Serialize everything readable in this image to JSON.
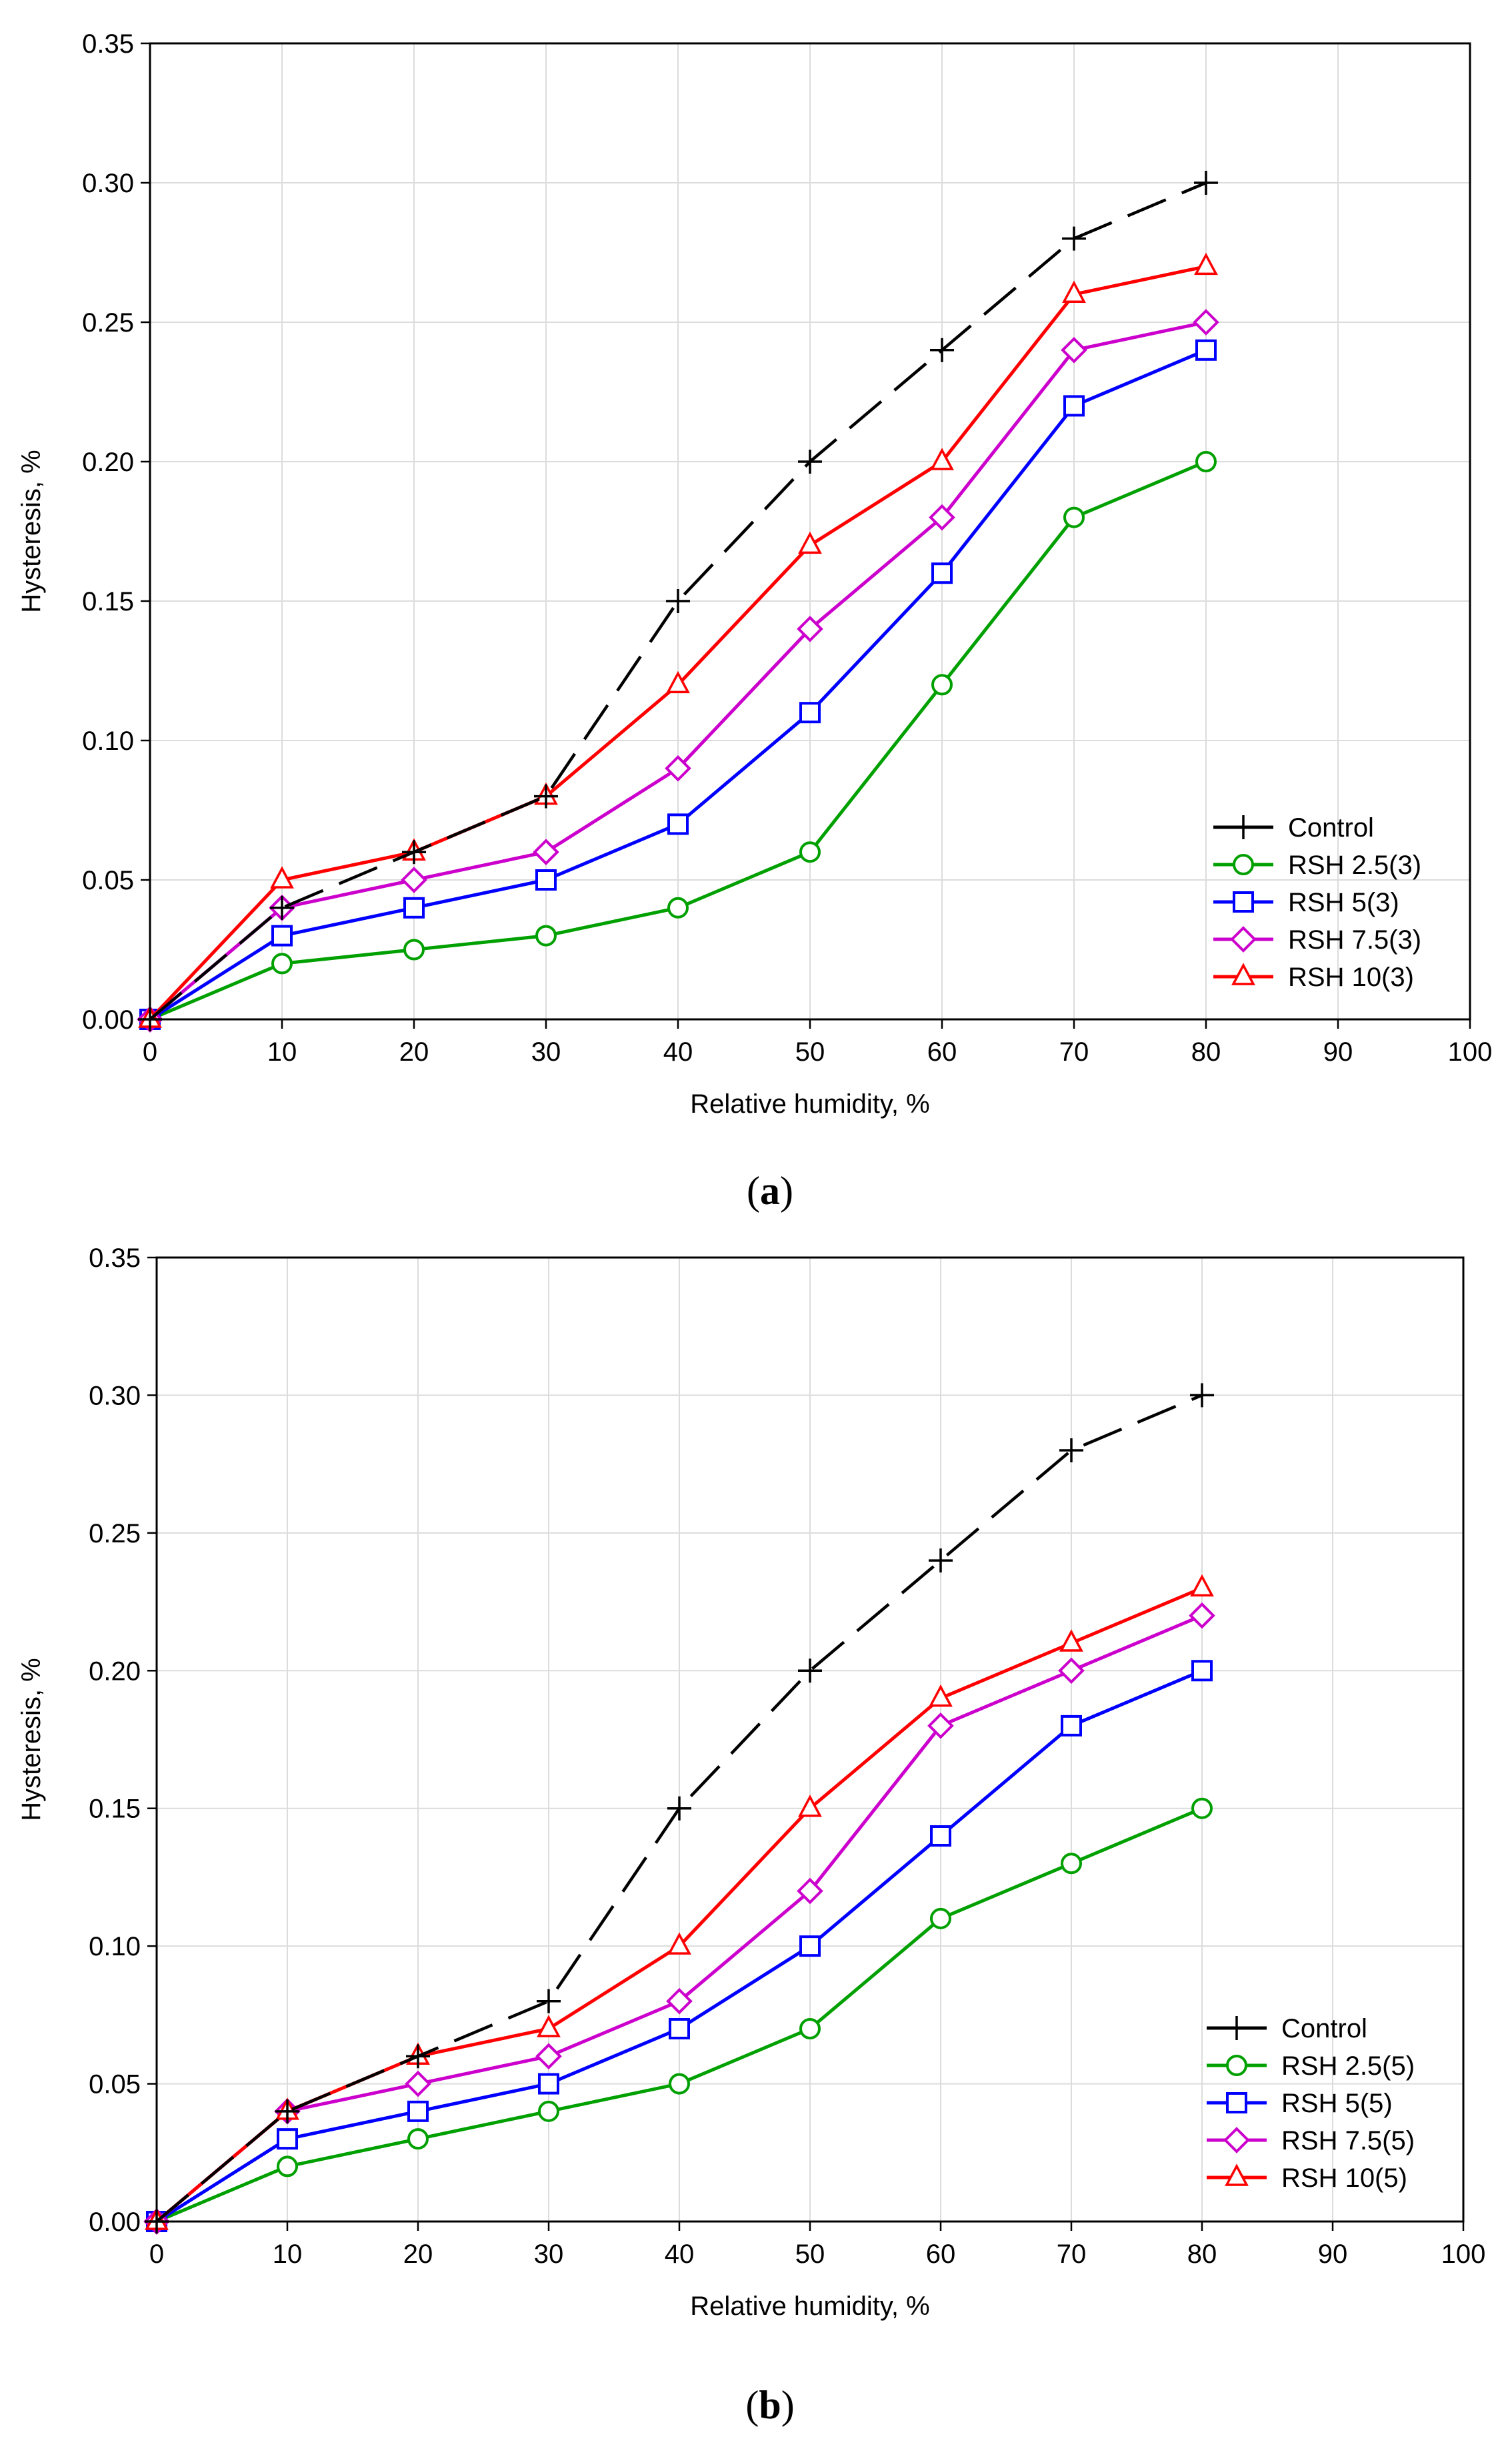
{
  "chart_data": [
    {
      "type": "line",
      "caption": "(a)",
      "caption_letter": "a",
      "xlabel": "Relative humidity, %",
      "ylabel": "Hysteresis, %",
      "xlim": [
        0,
        100
      ],
      "ylim": [
        0,
        0.35
      ],
      "xticks": [
        0,
        10,
        20,
        30,
        40,
        50,
        60,
        70,
        80,
        90,
        100
      ],
      "yticks": [
        "0.00",
        "0.05",
        "0.10",
        "0.15",
        "0.20",
        "0.25",
        "0.30",
        "0.35"
      ],
      "grid": true,
      "legend_position": "bottom-right",
      "x": [
        0,
        10,
        20,
        30,
        40,
        50,
        60,
        70,
        80
      ],
      "series": [
        {
          "name": "Control",
          "color": "#000000",
          "marker": "plus",
          "dashed": true,
          "values": [
            0,
            0.04,
            0.06,
            0.08,
            0.15,
            0.2,
            0.24,
            0.28,
            0.3
          ]
        },
        {
          "name": "RSH 2.5(3)",
          "color": "#00a000",
          "marker": "circle",
          "dashed": false,
          "values": [
            0,
            0.02,
            0.025,
            0.03,
            0.04,
            0.06,
            0.12,
            0.18,
            0.2
          ]
        },
        {
          "name": "RSH 5(3)",
          "color": "#0000ff",
          "marker": "square",
          "dashed": false,
          "values": [
            0,
            0.03,
            0.04,
            0.05,
            0.07,
            0.11,
            0.16,
            0.22,
            0.24
          ]
        },
        {
          "name": "RSH 7.5(3)",
          "color": "#cc00cc",
          "marker": "diamond",
          "dashed": false,
          "values": [
            0,
            0.04,
            0.05,
            0.06,
            0.09,
            0.14,
            0.18,
            0.24,
            0.25
          ]
        },
        {
          "name": "RSH 10(3)",
          "color": "#ff0000",
          "marker": "triangle",
          "dashed": false,
          "values": [
            0,
            0.05,
            0.06,
            0.08,
            0.12,
            0.17,
            0.2,
            0.26,
            0.27
          ]
        }
      ]
    },
    {
      "type": "line",
      "caption": "(b)",
      "caption_letter": "b",
      "xlabel": "Relative humidity, %",
      "ylabel": "Hysteresis, %",
      "xlim": [
        0,
        100
      ],
      "ylim": [
        0,
        0.35
      ],
      "xticks": [
        0,
        10,
        20,
        30,
        40,
        50,
        60,
        70,
        80,
        90,
        100
      ],
      "yticks": [
        "0.00",
        "0.05",
        "0.10",
        "0.15",
        "0.20",
        "0.25",
        "0.30",
        "0.35"
      ],
      "grid": true,
      "legend_position": "bottom-right",
      "x": [
        0,
        10,
        20,
        30,
        40,
        50,
        60,
        70,
        80
      ],
      "series": [
        {
          "name": "Control",
          "color": "#000000",
          "marker": "plus",
          "dashed": true,
          "values": [
            0,
            0.04,
            0.06,
            0.08,
            0.15,
            0.2,
            0.24,
            0.28,
            0.3
          ]
        },
        {
          "name": "RSH 2.5(5)",
          "color": "#00a000",
          "marker": "circle",
          "dashed": false,
          "values": [
            0,
            0.02,
            0.03,
            0.04,
            0.05,
            0.07,
            0.11,
            0.13,
            0.15
          ]
        },
        {
          "name": "RSH 5(5)",
          "color": "#0000ff",
          "marker": "square",
          "dashed": false,
          "values": [
            0,
            0.03,
            0.04,
            0.05,
            0.07,
            0.1,
            0.14,
            0.18,
            0.2
          ]
        },
        {
          "name": "RSH 7.5(5)",
          "color": "#cc00cc",
          "marker": "diamond",
          "dashed": false,
          "values": [
            0,
            0.04,
            0.05,
            0.06,
            0.08,
            0.12,
            0.18,
            0.2,
            0.22
          ]
        },
        {
          "name": "RSH 10(5)",
          "color": "#ff0000",
          "marker": "triangle",
          "dashed": false,
          "values": [
            0,
            0.04,
            0.06,
            0.07,
            0.1,
            0.15,
            0.19,
            0.21,
            0.23
          ]
        }
      ]
    }
  ]
}
